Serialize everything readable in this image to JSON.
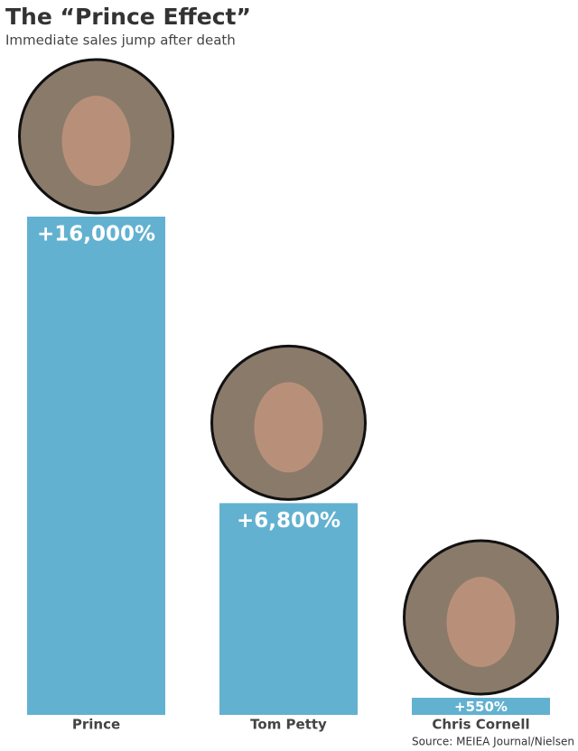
{
  "chart_data": {
    "type": "bar",
    "title": "The “Prince Effect”",
    "subtitle": "Immediate sales jump after death",
    "categories": [
      "Prince",
      "Tom Petty",
      "Chris Cornell"
    ],
    "values": [
      16000,
      6800,
      550
    ],
    "value_labels": [
      "+16,000%",
      "+6,800%",
      "+550%"
    ],
    "color": "#63b1d0",
    "source": "Source: MEIEA Journal/Nielsen"
  }
}
